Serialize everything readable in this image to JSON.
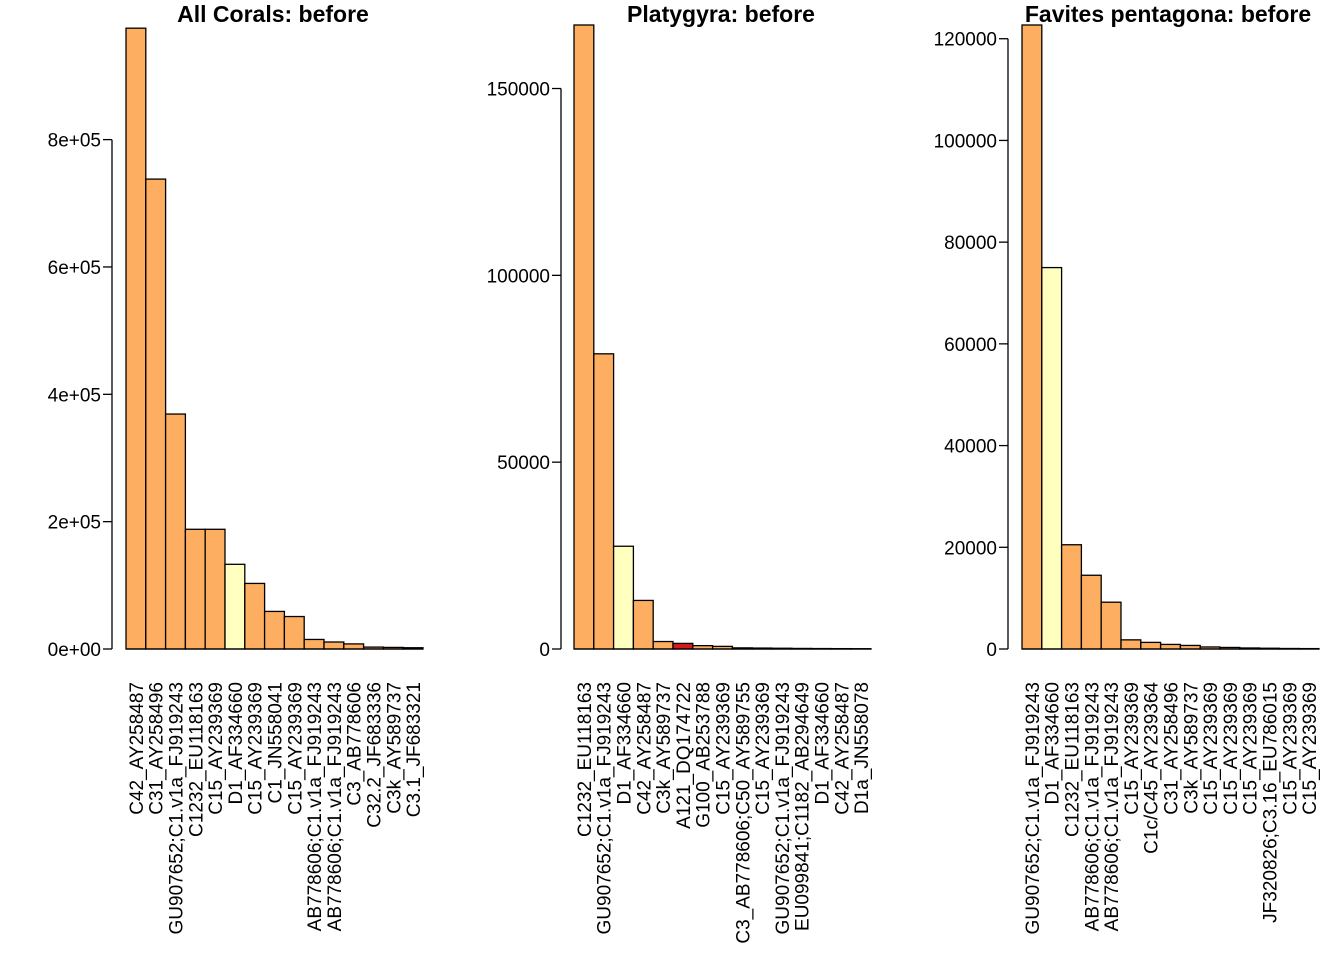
{
  "chart_data": [
    {
      "type": "bar",
      "title": "All Corals: before",
      "ylim": [
        0,
        980000
      ],
      "yticks": [
        0,
        200000,
        400000,
        600000,
        800000
      ],
      "ytick_labels": [
        "0e+00",
        "2e+05",
        "4e+05",
        "6e+05",
        "8e+05"
      ],
      "categories": [
        "C42_AY258487",
        "C31_AY258496",
        "GU907652;C1.v1a_FJ919243",
        "C1232_EU118163",
        "C15_AY239369",
        "D1_AF334660",
        "C15_AY239369",
        "C1_JN558041",
        "C15_AY239369",
        "AB778606;C1.v1a_FJ919243",
        "AB778606;C1.v1a_FJ919243",
        "C3_AB778606",
        "C32.2_JF683336",
        "C3k_AY589737",
        "C3.1_JF683321"
      ],
      "values": [
        975000,
        738000,
        369000,
        188000,
        188000,
        133000,
        103000,
        59000,
        51000,
        15000,
        11000,
        8000,
        3000,
        2500,
        2000
      ],
      "colors": [
        "#FDAE61",
        "#FDAE61",
        "#FDAE61",
        "#FDAE61",
        "#FDAE61",
        "#FFFFBF",
        "#FDAE61",
        "#FDAE61",
        "#FDAE61",
        "#FDAE61",
        "#FDAE61",
        "#FDAE61",
        "#FDAE61",
        "#FDAE61",
        "#FDAE61"
      ]
    },
    {
      "type": "bar",
      "title": "Platygyra: before",
      "ylim": [
        0,
        167000
      ],
      "yticks": [
        0,
        50000,
        100000,
        150000
      ],
      "ytick_labels": [
        "0",
        "50000",
        "100000",
        "150000"
      ],
      "categories": [
        "C1232_EU118163",
        "GU907652;C1.v1a_FJ919243",
        "D1_AF334660",
        "C42_AY258487",
        "C3k_AY589737",
        "A121_DQ174722",
        "G100_AB253788",
        "C15_AY239369",
        "C3_AB778606;C50_AY589755",
        "C15_AY239369",
        "GU907652;C1.v1a_FJ919243",
        "EU099841;C1182_AB294649",
        "D1_AF334660",
        "C42_AY258487",
        "D1a_JN558078"
      ],
      "values": [
        167000,
        79000,
        27500,
        13000,
        2000,
        1500,
        900,
        700,
        300,
        250,
        200,
        150,
        120,
        100,
        80
      ],
      "colors": [
        "#FDAE61",
        "#FDAE61",
        "#FFFFBF",
        "#FDAE61",
        "#FDAE61",
        "#D7191C",
        "#FDAE61",
        "#FDAE61",
        "#FDAE61",
        "#FDAE61",
        "#FDAE61",
        "#FDAE61",
        "#FFFFBF",
        "#FDAE61",
        "#FFFFBF"
      ]
    },
    {
      "type": "bar",
      "title": "Favites pentagona: before",
      "ylim": [
        0,
        122700
      ],
      "yticks": [
        0,
        20000,
        40000,
        60000,
        80000,
        100000,
        120000
      ],
      "ytick_labels": [
        "0",
        "20000",
        "40000",
        "60000",
        "80000",
        "100000",
        "120000"
      ],
      "categories": [
        "GU907652;C1.v1a_FJ919243",
        "D1_AF334660",
        "C1232_EU118163",
        "AB778606;C1.v1a_FJ919243",
        "AB778606;C1.v1a_FJ919243",
        "C15_AY239369",
        "C1c/C45_AY239364",
        "C31_AY258496",
        "C3k_AY589737",
        "C15_AY239369",
        "C15_AY239369",
        "C15_AY239369",
        "JF320826;C3.16_EU786015",
        "C15_AY239369",
        "C15_AY239369"
      ],
      "values": [
        122700,
        75000,
        20500,
        14500,
        9200,
        1800,
        1300,
        900,
        700,
        400,
        300,
        200,
        150,
        100,
        80
      ],
      "colors": [
        "#FDAE61",
        "#FFFFBF",
        "#FDAE61",
        "#FDAE61",
        "#FDAE61",
        "#FDAE61",
        "#FDAE61",
        "#FDAE61",
        "#FDAE61",
        "#FDAE61",
        "#FDAE61",
        "#FDAE61",
        "#FDAE61",
        "#FDAE61",
        "#FDAE61"
      ]
    }
  ]
}
